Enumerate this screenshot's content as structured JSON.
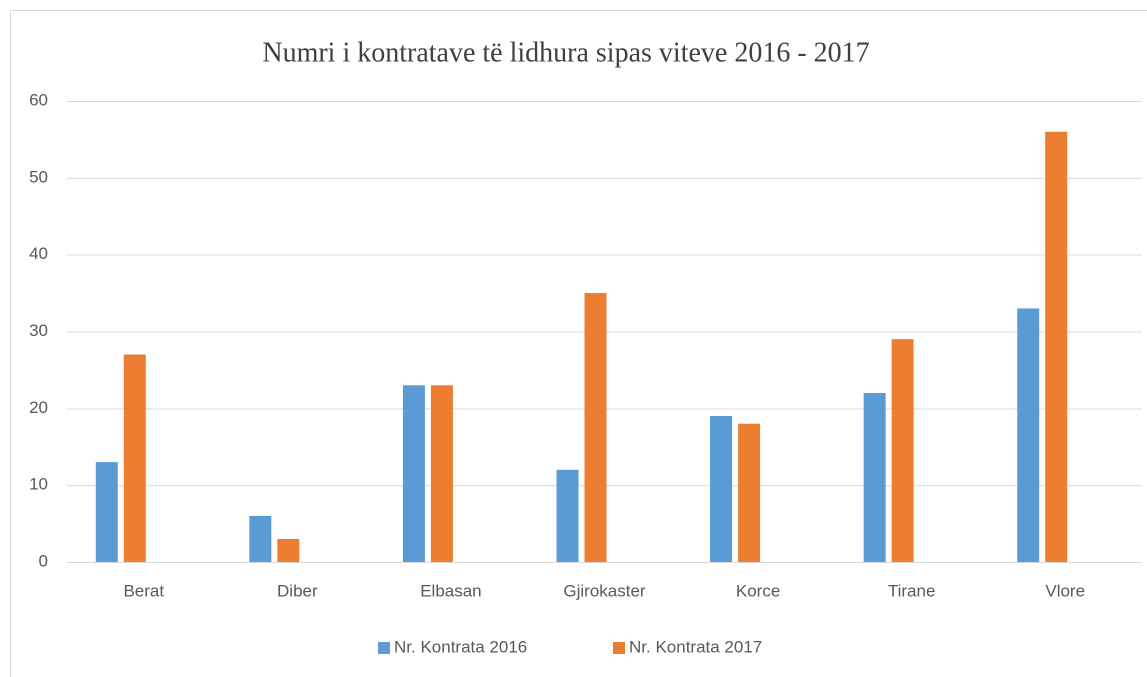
{
  "chart_data": {
    "type": "bar",
    "title": "Numri i kontratave të lidhura sipas viteve 2016 - 2017",
    "categories": [
      "Berat",
      "Diber",
      "Elbasan",
      "Gjirokaster",
      "Korce",
      "Tirane",
      "Vlore"
    ],
    "series": [
      {
        "name": "Nr. Kontrata 2016",
        "color": "#5b9bd5",
        "values": [
          13,
          6,
          23,
          12,
          19,
          22,
          33
        ]
      },
      {
        "name": "Nr. Kontrata 2017",
        "color": "#ed7d31",
        "values": [
          27,
          3,
          23,
          35,
          18,
          29,
          56
        ]
      }
    ],
    "ylim": [
      0,
      60
    ],
    "yticks": [
      0,
      10,
      20,
      30,
      40,
      50,
      60
    ],
    "grid": true,
    "legend": "bottom"
  }
}
